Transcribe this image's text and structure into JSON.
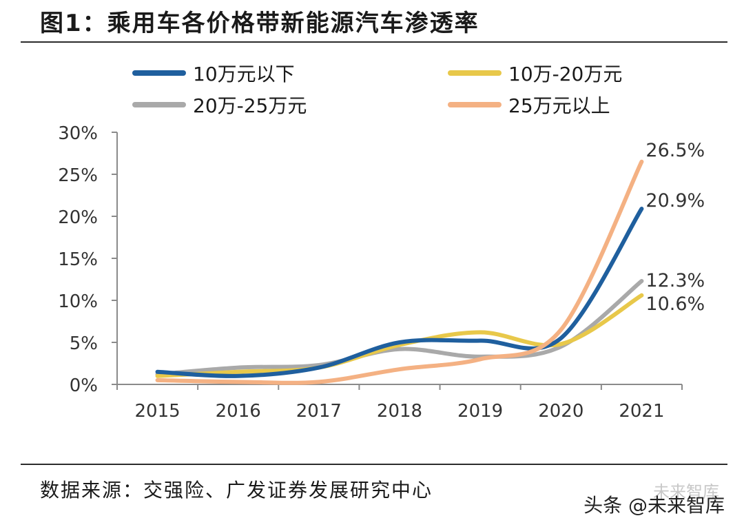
{
  "header": {
    "title": "图1：乘用车各价格带新能源汽车渗透率"
  },
  "footer": {
    "source": "数据来源：交强险、广发证券发展研究中心",
    "watermark": "头条 @未来智库",
    "watermark_ghost": "未来智库"
  },
  "chart_data": {
    "type": "line",
    "title": "图1：乘用车各价格带新能源汽车渗透率",
    "xlabel": "",
    "ylabel": "",
    "categories": [
      "2015",
      "2016",
      "2017",
      "2018",
      "2019",
      "2020",
      "2021"
    ],
    "ylim": [
      0,
      30
    ],
    "yticks": [
      "0%",
      "5%",
      "10%",
      "15%",
      "20%",
      "25%",
      "30%"
    ],
    "grid": false,
    "legend_position": "top",
    "series": [
      {
        "name": "10万元以下",
        "color": "#1f5f9e",
        "values": [
          1.5,
          1.0,
          2.0,
          5.0,
          5.2,
          5.5,
          20.9
        ],
        "end_label": "20.9%"
      },
      {
        "name": "10万-20万元",
        "color": "#e8c84a",
        "values": [
          1.0,
          1.5,
          2.0,
          4.7,
          6.2,
          4.8,
          10.6
        ],
        "end_label": "10.6%"
      },
      {
        "name": "20万-25万元",
        "color": "#a9a9a9",
        "values": [
          1.2,
          2.0,
          2.3,
          4.2,
          3.3,
          4.5,
          12.3
        ],
        "end_label": "12.3%"
      },
      {
        "name": "25万元以上",
        "color": "#f4b183",
        "values": [
          0.5,
          0.3,
          0.3,
          1.8,
          3.0,
          6.5,
          26.5
        ],
        "end_label": "26.5%"
      }
    ]
  }
}
